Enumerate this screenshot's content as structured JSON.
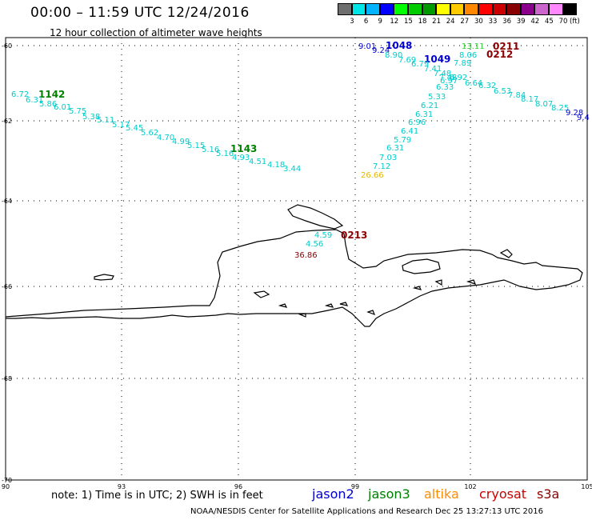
{
  "header": {
    "title": "00:00 – 11:59 UTC 12/24/2016",
    "subtitle": "12 hour collection of altimeter wave heights"
  },
  "legend": {
    "colors": [
      "#6e6e6e",
      "#00e5e5",
      "#00b4ff",
      "#0000ff",
      "#00ff00",
      "#00cc00",
      "#009900",
      "#ffff00",
      "#ffcc00",
      "#ff8800",
      "#ff0000",
      "#cc0000",
      "#880000",
      "#8b008b",
      "#cc66cc",
      "#ff88ff",
      "#000000"
    ],
    "labels": [
      "3",
      "6",
      "9",
      "12",
      "15",
      "18",
      "21",
      "24",
      "27",
      "30",
      "33",
      "36",
      "39",
      "42",
      "45",
      "70"
    ],
    "unit": "(ft)"
  },
  "axes": {
    "lat_labels": [
      "-60",
      "-62",
      "-64",
      "-66",
      "-68",
      "-70"
    ],
    "lon_labels": [
      "90",
      "93",
      "96",
      "99",
      "102",
      "105"
    ]
  },
  "tracks": [
    {
      "id": "1142",
      "color": "#008000"
    },
    {
      "id": "1143",
      "color": "#008000"
    },
    {
      "id": "1048",
      "color": "#0000cc"
    },
    {
      "id": "1049",
      "color": "#0000cc"
    },
    {
      "id": "0211",
      "color": "#8b0000"
    },
    {
      "id": "0212",
      "color": "#8b0000"
    },
    {
      "id": "0213",
      "color": "#8b0000"
    }
  ],
  "wave_values": [
    {
      "text": "6.72",
      "color": "#00cccc"
    },
    {
      "text": "6.31",
      "color": "#00cccc"
    },
    {
      "text": "5.86",
      "color": "#00cccc"
    },
    {
      "text": "6.01",
      "color": "#00cccc"
    },
    {
      "text": "5.75",
      "color": "#00cccc"
    },
    {
      "text": "5.38",
      "color": "#00cccc"
    },
    {
      "text": "5.11",
      "color": "#00cccc"
    },
    {
      "text": "5.17",
      "color": "#00cccc"
    },
    {
      "text": "5.45",
      "color": "#00cccc"
    },
    {
      "text": "5.62",
      "color": "#00cccc"
    },
    {
      "text": "4.70",
      "color": "#00cccc"
    },
    {
      "text": "4.99",
      "color": "#00cccc"
    },
    {
      "text": "5.15",
      "color": "#00cccc"
    },
    {
      "text": "5.16",
      "color": "#00cccc"
    },
    {
      "text": "5.16",
      "color": "#00cccc"
    },
    {
      "text": "4.93",
      "color": "#00cccc"
    },
    {
      "text": "4.51",
      "color": "#00cccc"
    },
    {
      "text": "4.18",
      "color": "#00cccc"
    },
    {
      "text": "3.44",
      "color": "#00cccc"
    },
    {
      "text": "9.01",
      "color": "#0000cc"
    },
    {
      "text": "9.24",
      "color": "#0000cc"
    },
    {
      "text": "8.90",
      "color": "#00cccc"
    },
    {
      "text": "7.69",
      "color": "#00cccc"
    },
    {
      "text": "6.79",
      "color": "#00cccc"
    },
    {
      "text": "7.41",
      "color": "#00cccc"
    },
    {
      "text": "7.48",
      "color": "#00cccc"
    },
    {
      "text": "7.48",
      "color": "#00cccc"
    },
    {
      "text": "6.97",
      "color": "#00cccc"
    },
    {
      "text": "6.33",
      "color": "#00cccc"
    },
    {
      "text": "5.33",
      "color": "#00cccc"
    },
    {
      "text": "6.21",
      "color": "#00cccc"
    },
    {
      "text": "6.31",
      "color": "#00cccc"
    },
    {
      "text": "6.96",
      "color": "#00cccc"
    },
    {
      "text": "6.41",
      "color": "#00cccc"
    },
    {
      "text": "5.79",
      "color": "#00cccc"
    },
    {
      "text": "6.31",
      "color": "#00cccc"
    },
    {
      "text": "7.03",
      "color": "#00cccc"
    },
    {
      "text": "7.12",
      "color": "#00cccc"
    },
    {
      "text": "26.66",
      "color": "#e6b800"
    },
    {
      "text": "13.11",
      "color": "#33cc33"
    },
    {
      "text": "8.06",
      "color": "#00cccc"
    },
    {
      "text": "7.89",
      "color": "#00cccc"
    },
    {
      "text": "6.92",
      "color": "#00cccc"
    },
    {
      "text": "6.64",
      "color": "#00cccc"
    },
    {
      "text": "6.32",
      "color": "#00cccc"
    },
    {
      "text": "6.53",
      "color": "#00cccc"
    },
    {
      "text": "7.84",
      "color": "#00cccc"
    },
    {
      "text": "8.17",
      "color": "#00cccc"
    },
    {
      "text": "8.07",
      "color": "#00cccc"
    },
    {
      "text": "8.25",
      "color": "#00cccc"
    },
    {
      "text": "9.28",
      "color": "#0000cc"
    },
    {
      "text": "9.4",
      "color": "#0000cc"
    },
    {
      "text": "4.59",
      "color": "#00cccc"
    },
    {
      "text": "4.56",
      "color": "#00cccc"
    },
    {
      "text": "36.86",
      "color": "#8b0000"
    }
  ],
  "footer": {
    "note": "note:  1) Time is in UTC; 2) SWH is in feet",
    "satellites": [
      {
        "name": "jason2",
        "color": "#0000cc"
      },
      {
        "name": "jason3",
        "color": "#008000"
      },
      {
        "name": "altika",
        "color": "#ff8c00"
      },
      {
        "name": "cryosat",
        "color": "#cc0000"
      },
      {
        "name": "s3a",
        "color": "#8b0000"
      }
    ],
    "credit": "NOAA/NESDIS Center for Satellite Applications and Research     Dec 25 13:27:13 UTC 2016"
  }
}
